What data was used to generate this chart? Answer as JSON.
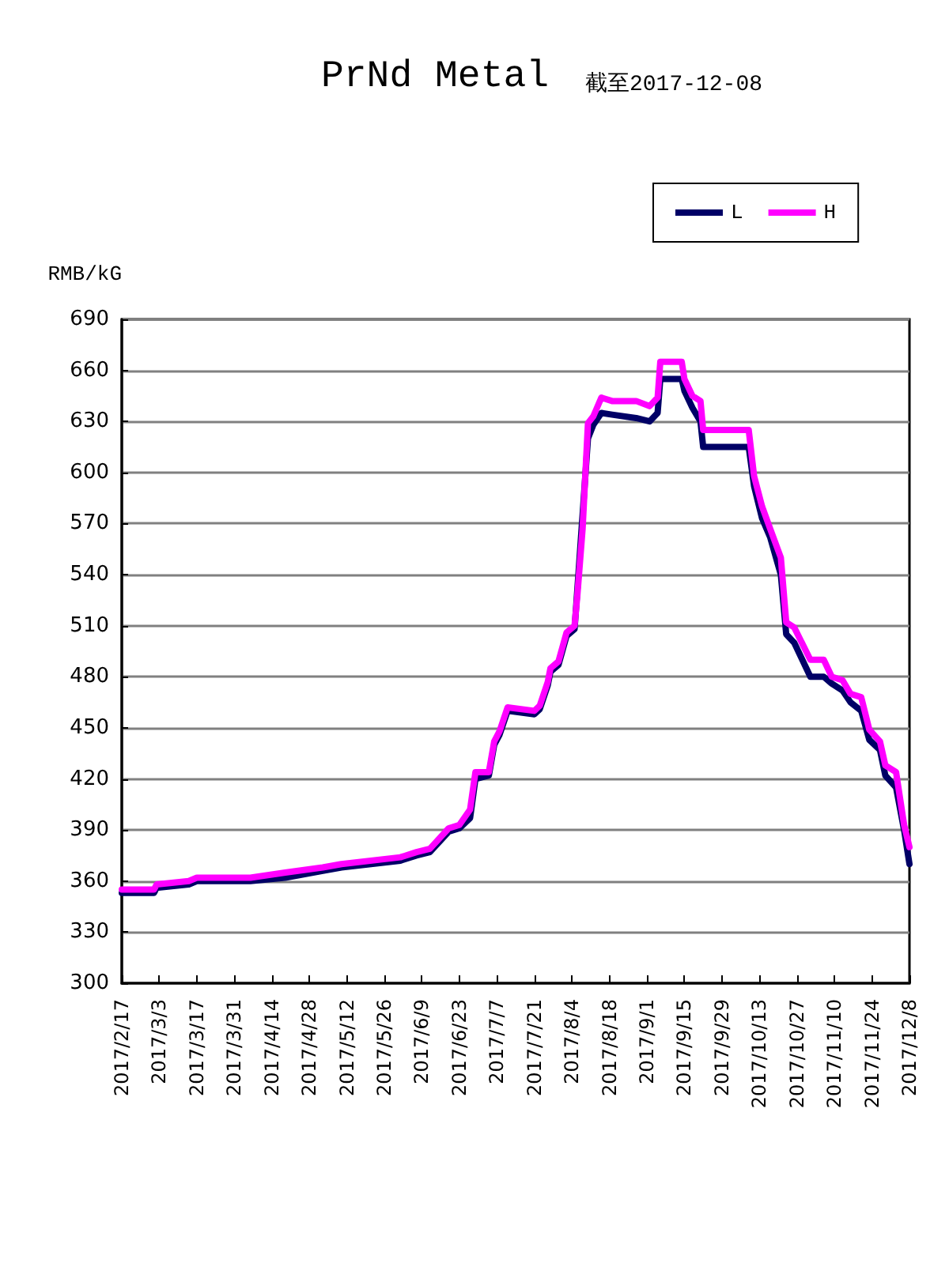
{
  "chart_data": {
    "type": "line",
    "title": "PrNd Metal",
    "subtitle": "截至2017-12-08",
    "ylabel": "RMB/kG",
    "x": [
      "2017-02-17",
      "2017-03-01",
      "2017-03-02",
      "2017-03-14",
      "2017-03-17",
      "2017-04-06",
      "2017-04-19",
      "2017-05-03",
      "2017-05-10",
      "2017-06-01",
      "2017-06-07",
      "2017-06-12",
      "2017-06-19",
      "2017-06-23",
      "2017-06-27",
      "2017-06-29",
      "2017-07-04",
      "2017-07-06",
      "2017-07-08",
      "2017-07-11",
      "2017-07-21",
      "2017-07-23",
      "2017-07-26",
      "2017-07-27",
      "2017-07-30",
      "2017-08-02",
      "2017-08-05",
      "2017-08-06",
      "2017-08-08",
      "2017-08-10",
      "2017-08-12",
      "2017-08-15",
      "2017-08-19",
      "2017-08-28",
      "2017-09-02",
      "2017-09-05",
      "2017-09-06",
      "2017-09-14",
      "2017-09-15",
      "2017-09-18",
      "2017-09-21",
      "2017-09-22",
      "2017-10-09",
      "2017-10-11",
      "2017-10-14",
      "2017-10-17",
      "2017-10-21",
      "2017-10-23",
      "2017-10-26",
      "2017-11-01",
      "2017-11-06",
      "2017-11-09",
      "2017-11-13",
      "2017-11-16",
      "2017-11-20",
      "2017-11-23",
      "2017-11-27",
      "2017-11-29",
      "2017-12-03",
      "2017-12-06",
      "2017-12-08"
    ],
    "series": [
      {
        "name": "L",
        "color": "#000066",
        "values": [
          353,
          353,
          356,
          358,
          360,
          360,
          362,
          366,
          368,
          372,
          375,
          377,
          389,
          391,
          397,
          420,
          422,
          440,
          446,
          460,
          458,
          461,
          475,
          483,
          487,
          504,
          508,
          null,
          null,
          620,
          628,
          635,
          634,
          632,
          630,
          635,
          655,
          655,
          648,
          638,
          630,
          615,
          615,
          592,
          573,
          562,
          540,
          505,
          500,
          480,
          480,
          476,
          472,
          465,
          460,
          443,
          437,
          422,
          415,
          390,
          370
        ]
      },
      {
        "name": "H",
        "color": "#ff00ff",
        "values": [
          355,
          355,
          358,
          360,
          362,
          362,
          365,
          368,
          370,
          374,
          377,
          379,
          391,
          393,
          402,
          424,
          424,
          442,
          448,
          462,
          460,
          463,
          477,
          485,
          489,
          506,
          510,
          527,
          567,
          629,
          633,
          644,
          642,
          642,
          639,
          644,
          665,
          665,
          655,
          645,
          642,
          625,
          625,
          598,
          580,
          567,
          550,
          512,
          509,
          490,
          490,
          480,
          478,
          470,
          468,
          449,
          442,
          428,
          424,
          393,
          380
        ]
      }
    ],
    "xlim": [
      "2017-02-17",
      "2017-12-08"
    ],
    "xticks": [
      {
        "value": "2017-02-17",
        "label": "2017/2/17"
      },
      {
        "value": "2017-03-03",
        "label": "2017/3/3"
      },
      {
        "value": "2017-03-17",
        "label": "2017/3/17"
      },
      {
        "value": "2017-03-31",
        "label": "2017/3/31"
      },
      {
        "value": "2017-04-14",
        "label": "2017/4/14"
      },
      {
        "value": "2017-04-28",
        "label": "2017/4/28"
      },
      {
        "value": "2017-05-12",
        "label": "2017/5/12"
      },
      {
        "value": "2017-05-26",
        "label": "2017/5/26"
      },
      {
        "value": "2017-06-09",
        "label": "2017/6/9"
      },
      {
        "value": "2017-06-23",
        "label": "2017/6/23"
      },
      {
        "value": "2017-07-07",
        "label": "2017/7/7"
      },
      {
        "value": "2017-07-21",
        "label": "2017/7/21"
      },
      {
        "value": "2017-08-04",
        "label": "2017/8/4"
      },
      {
        "value": "2017-08-18",
        "label": "2017/8/18"
      },
      {
        "value": "2017-09-01",
        "label": "2017/9/1"
      },
      {
        "value": "2017-09-15",
        "label": "2017/9/15"
      },
      {
        "value": "2017-09-29",
        "label": "2017/9/29"
      },
      {
        "value": "2017-10-13",
        "label": "2017/10/13"
      },
      {
        "value": "2017-10-27",
        "label": "2017/10/27"
      },
      {
        "value": "2017-11-10",
        "label": "2017/11/10"
      },
      {
        "value": "2017-11-24",
        "label": "2017/11/24"
      },
      {
        "value": "2017-12-08",
        "label": "2017/12/8"
      }
    ],
    "ylim": [
      300,
      690
    ],
    "yticks": [
      300,
      330,
      360,
      390,
      420,
      450,
      480,
      510,
      540,
      570,
      600,
      630,
      660,
      690
    ],
    "grid": "y",
    "legend": "top right",
    "line_style": "solid"
  }
}
